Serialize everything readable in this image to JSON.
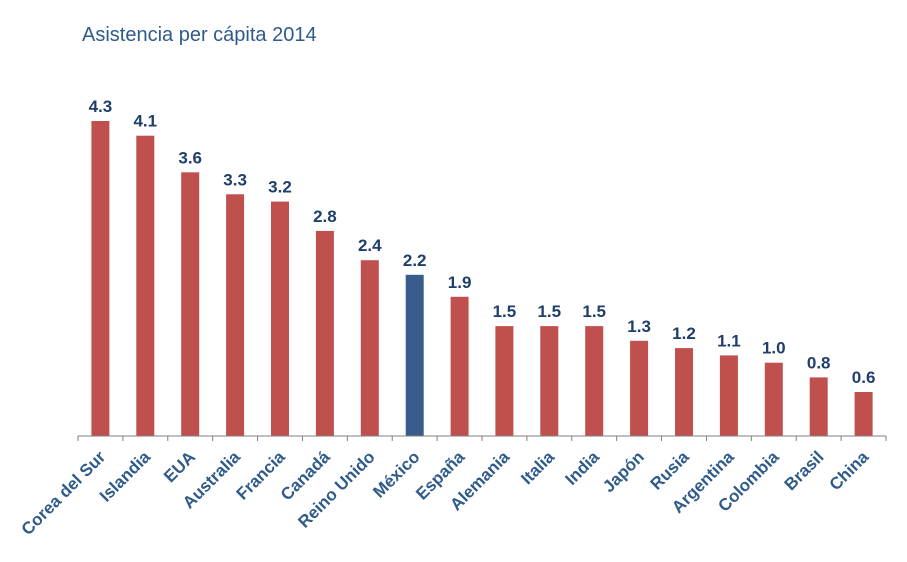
{
  "chart_data": {
    "type": "bar",
    "title": "Asistencia per cápita 2014",
    "xlabel": "",
    "ylabel": "",
    "ylim": [
      0,
      4.3
    ],
    "grid": false,
    "categories": [
      "Corea del Sur",
      "Islandia",
      "EUA",
      "Australia",
      "Francia",
      "Canadá",
      "Reino Unido",
      "México",
      "España",
      "Alemania",
      "Italia",
      "India",
      "Japón",
      "Rusia",
      "Argentina",
      "Colombia",
      "Brasil",
      "China"
    ],
    "values": [
      4.3,
      4.1,
      3.6,
      3.3,
      3.2,
      2.8,
      2.4,
      2.2,
      1.9,
      1.5,
      1.5,
      1.5,
      1.3,
      1.2,
      1.1,
      1.0,
      0.8,
      0.6
    ],
    "labels": [
      "4.3",
      "4.1",
      "3.6",
      "3.3",
      "3.2",
      "2.8",
      "2.4",
      "2.2",
      "1.9",
      "1.5",
      "1.5",
      "1.5",
      "1.3",
      "1.2",
      "1.1",
      "1.0",
      "0.8",
      "0.6"
    ],
    "highlight_index": 7,
    "colors": {
      "bar": "#c0504d",
      "highlight": "#385d8a",
      "label": "#1f3f6b",
      "title": "#2e5b8a"
    }
  }
}
